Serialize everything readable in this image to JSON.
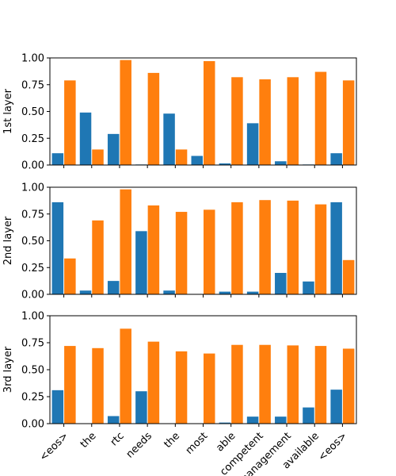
{
  "chart_data": {
    "type": "bar",
    "categories": [
      "<eos>",
      "the",
      "rtc",
      "needs",
      "the",
      "most",
      "able",
      "competent",
      "management",
      "available",
      "<eos>"
    ],
    "colors": {
      "series_blue": "#1f77b4",
      "series_orange": "#ff7f0e"
    },
    "ylim": [
      0,
      1
    ],
    "yticks": [
      "0.00",
      "0.25",
      "0.50",
      "0.75",
      "1.00"
    ],
    "grid": false,
    "subplots": [
      {
        "ylabel": "1st layer",
        "series": [
          {
            "values": [
              0.11,
              0.49,
              0.29,
              0.005,
              0.48,
              0.085,
              0.015,
              0.39,
              0.035,
              0.005,
              0.11
            ]
          },
          {
            "values": [
              0.79,
              0.145,
              0.98,
              0.86,
              0.145,
              0.97,
              0.82,
              0.8,
              0.82,
              0.87,
              0.79
            ]
          }
        ]
      },
      {
        "ylabel": "2nd layer",
        "series": [
          {
            "values": [
              0.86,
              0.035,
              0.125,
              0.59,
              0.035,
              0.0,
              0.025,
              0.025,
              0.2,
              0.12,
              0.86
            ]
          },
          {
            "values": [
              0.335,
              0.69,
              0.98,
              0.83,
              0.77,
              0.79,
              0.86,
              0.88,
              0.875,
              0.84,
              0.32
            ]
          }
        ]
      },
      {
        "ylabel": "3rd layer",
        "series": [
          {
            "values": [
              0.31,
              0.0,
              0.07,
              0.3,
              0.0,
              0.0,
              0.01,
              0.065,
              0.065,
              0.15,
              0.315
            ]
          },
          {
            "values": [
              0.72,
              0.7,
              0.88,
              0.76,
              0.67,
              0.65,
              0.73,
              0.73,
              0.725,
              0.72,
              0.695
            ]
          }
        ]
      }
    ]
  }
}
